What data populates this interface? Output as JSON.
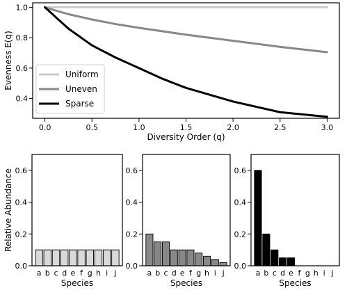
{
  "chart_data": [
    {
      "type": "line",
      "xlabel": "Diversity Order (q)",
      "ylabel": "Evenness E(q)",
      "xlim": [
        -0.13,
        3.13
      ],
      "ylim": [
        0.27,
        1.03
      ],
      "xticks": [
        0.0,
        0.5,
        1.0,
        1.5,
        2.0,
        2.5,
        3.0
      ],
      "xtick_labels": [
        "0.0",
        "0.5",
        "1.0",
        "1.5",
        "2.0",
        "2.5",
        "3.0"
      ],
      "yticks": [
        0.4,
        0.6,
        0.8,
        1.0
      ],
      "ytick_labels": [
        "0.4",
        "0.6",
        "0.8",
        "1.0"
      ],
      "grid": false,
      "legend": "lower-left",
      "series": [
        {
          "name": "Uniform",
          "color": "#cccccc",
          "x": [
            0.0,
            0.5,
            1.0,
            1.5,
            2.0,
            2.5,
            3.0
          ],
          "y": [
            1.0,
            1.0,
            1.0,
            1.0,
            1.0,
            1.0,
            1.0
          ]
        },
        {
          "name": "Uneven",
          "color": "#888888",
          "x": [
            0.0,
            0.25,
            0.5,
            0.75,
            1.0,
            1.5,
            2.0,
            2.5,
            3.0
          ],
          "y": [
            1.0,
            0.955,
            0.92,
            0.89,
            0.865,
            0.82,
            0.78,
            0.74,
            0.705
          ]
        },
        {
          "name": "Sparse",
          "color": "#000000",
          "x": [
            0.0,
            0.25,
            0.5,
            0.75,
            1.0,
            1.25,
            1.5,
            2.0,
            2.5,
            3.0
          ],
          "y": [
            1.0,
            0.86,
            0.75,
            0.67,
            0.6,
            0.53,
            0.47,
            0.38,
            0.31,
            0.28
          ]
        }
      ]
    },
    {
      "type": "bar",
      "categories": [
        "a",
        "b",
        "c",
        "d",
        "e",
        "f",
        "g",
        "h",
        "i",
        "j"
      ],
      "values": [
        0.1,
        0.1,
        0.1,
        0.1,
        0.1,
        0.1,
        0.1,
        0.1,
        0.1,
        0.1
      ],
      "color": "#d9d9d9",
      "xlabel": "Species",
      "ylabel": "Relative Abundance",
      "ylim": [
        0,
        0.7
      ],
      "yticks": [
        0.0,
        0.2,
        0.4,
        0.6
      ],
      "ytick_labels": [
        "0.0",
        "0.2",
        "0.4",
        "0.6"
      ]
    },
    {
      "type": "bar",
      "categories": [
        "a",
        "b",
        "c",
        "d",
        "e",
        "f",
        "g",
        "h",
        "i",
        "j"
      ],
      "values": [
        0.2,
        0.15,
        0.15,
        0.1,
        0.1,
        0.1,
        0.08,
        0.06,
        0.04,
        0.02
      ],
      "color": "#888888",
      "xlabel": "Species",
      "ylabel": "",
      "ylim": [
        0,
        0.7
      ],
      "yticks": [
        0.0,
        0.2,
        0.4,
        0.6
      ],
      "ytick_labels": [
        "0.0",
        "0.2",
        "0.4",
        "0.6"
      ]
    },
    {
      "type": "bar",
      "categories": [
        "a",
        "b",
        "c",
        "d",
        "e",
        "f",
        "g",
        "h",
        "i",
        "j"
      ],
      "values": [
        0.6,
        0.2,
        0.1,
        0.05,
        0.05,
        0,
        0,
        0,
        0,
        0
      ],
      "color": "#000000",
      "xlabel": "Species",
      "ylabel": "",
      "ylim": [
        0,
        0.7
      ],
      "yticks": [
        0.0,
        0.2,
        0.4,
        0.6
      ],
      "ytick_labels": [
        "0.0",
        "0.2",
        "0.4",
        "0.6"
      ]
    }
  ]
}
